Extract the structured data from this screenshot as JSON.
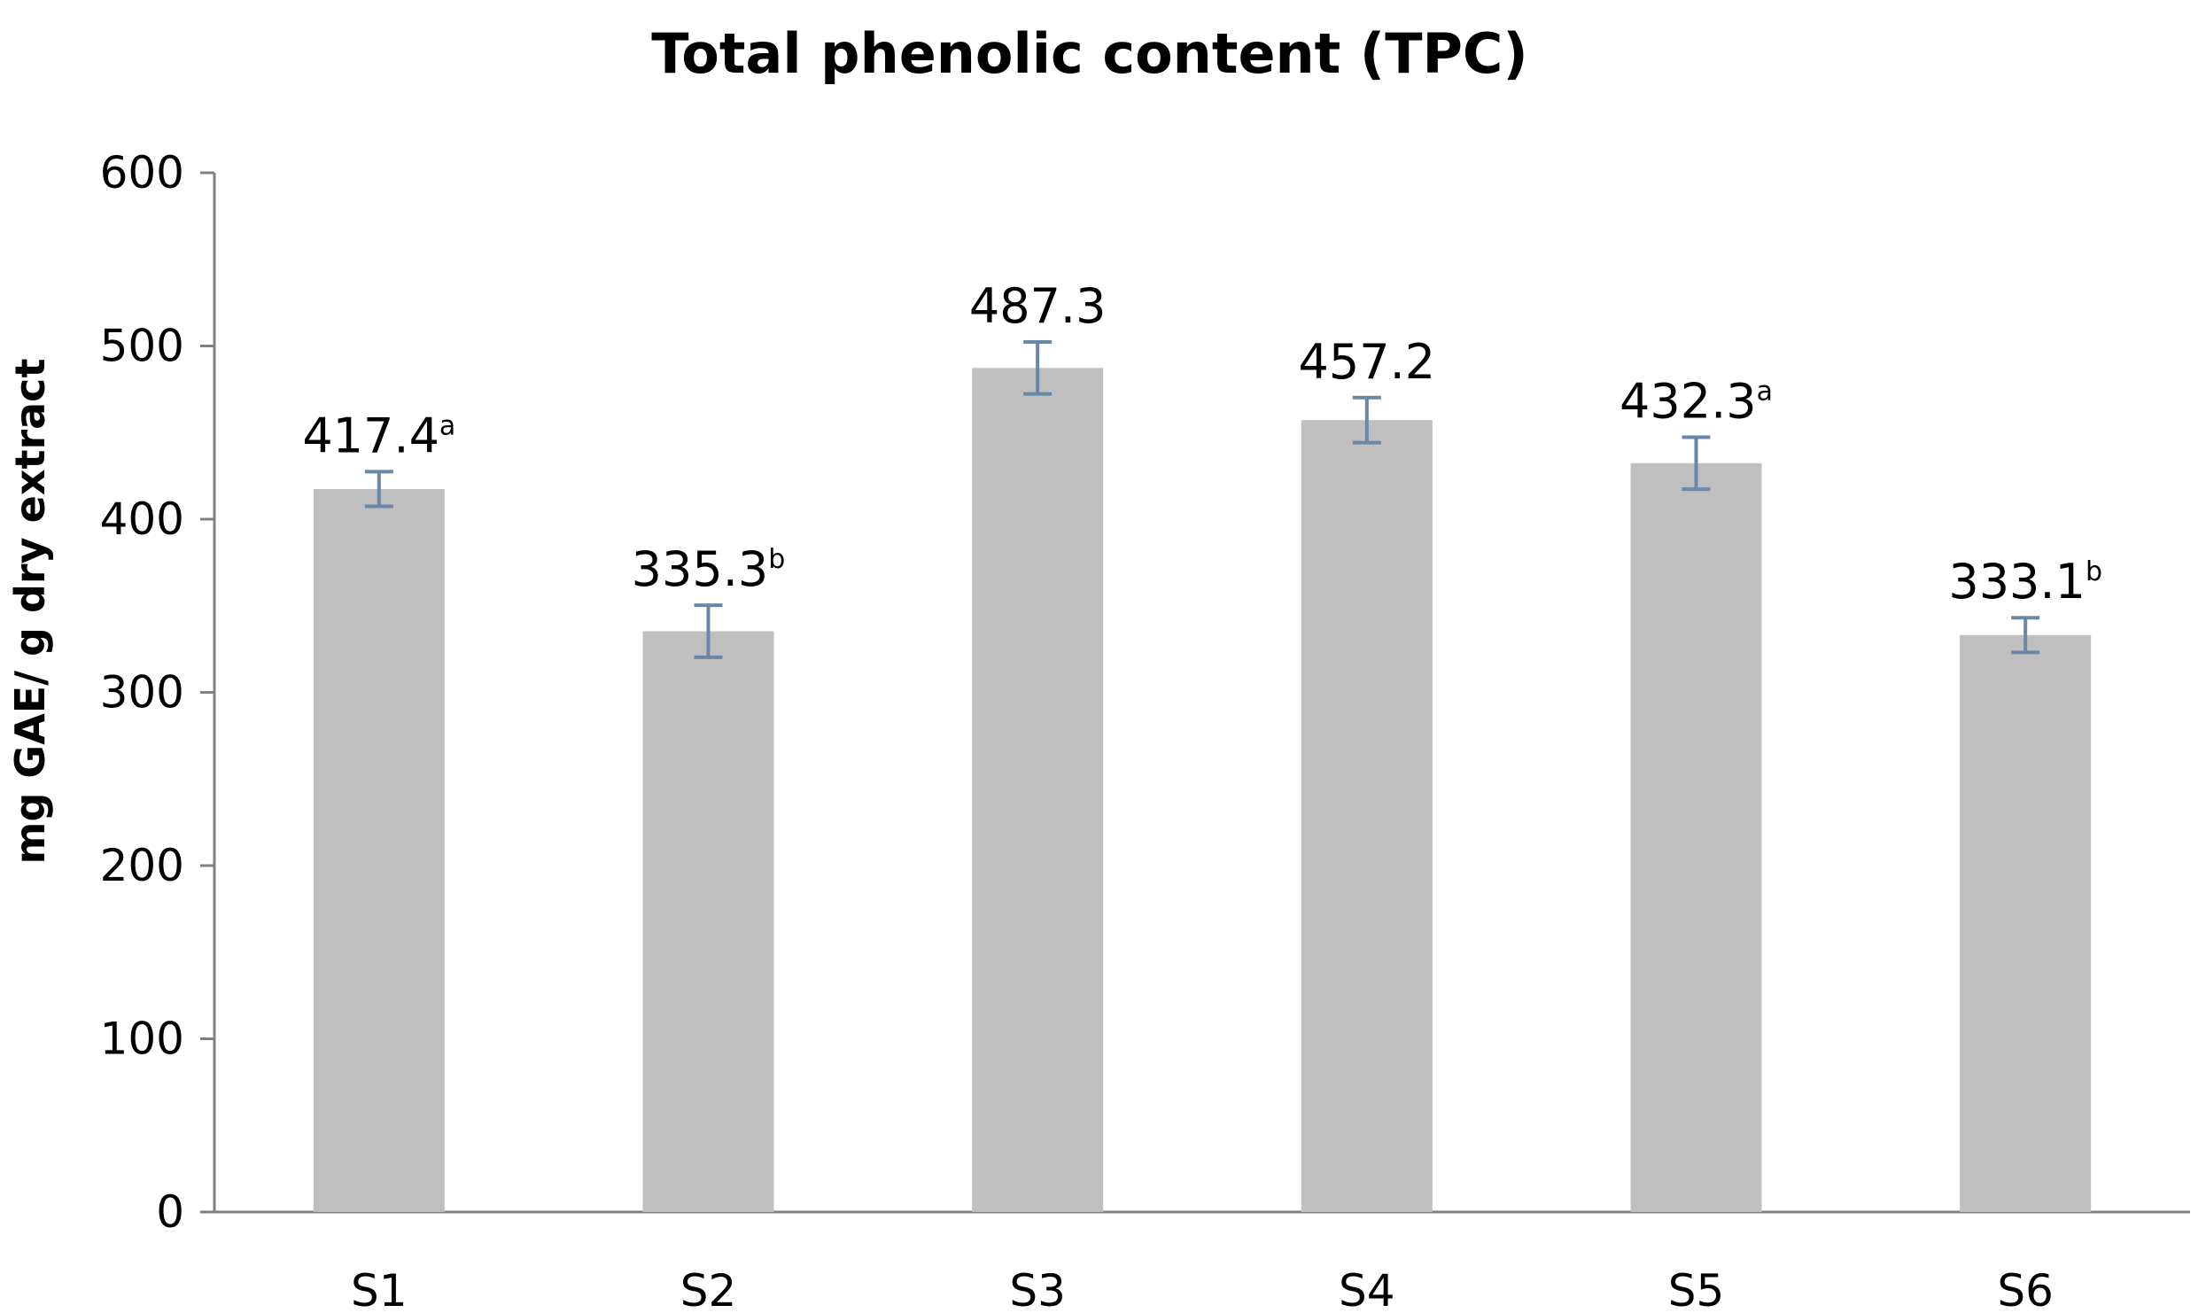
{
  "chart_data": {
    "type": "bar",
    "title": "Total phenolic content (TPC)",
    "xlabel": "",
    "ylabel": "mg GAE/ g dry extract",
    "ylim": [
      0,
      600
    ],
    "yticks": [
      0,
      100,
      200,
      300,
      400,
      500,
      600
    ],
    "categories": [
      "S1",
      "S2",
      "S3",
      "S4",
      "S5",
      "S6"
    ],
    "values": [
      417.4,
      335.3,
      487.3,
      457.2,
      432.3,
      333.1
    ],
    "errors": [
      10,
      15,
      15,
      13,
      15,
      10
    ],
    "data_labels": [
      "417.4",
      "335.3",
      "487.3",
      "457.2",
      "432.3",
      "333.1"
    ],
    "significance": [
      "a",
      "b",
      "",
      "",
      "a",
      "b"
    ],
    "grid": false,
    "legend": "none",
    "colors": {
      "bar": "#bfbfbf",
      "error_bar": "#6b87a8",
      "axis": "#808080"
    }
  }
}
